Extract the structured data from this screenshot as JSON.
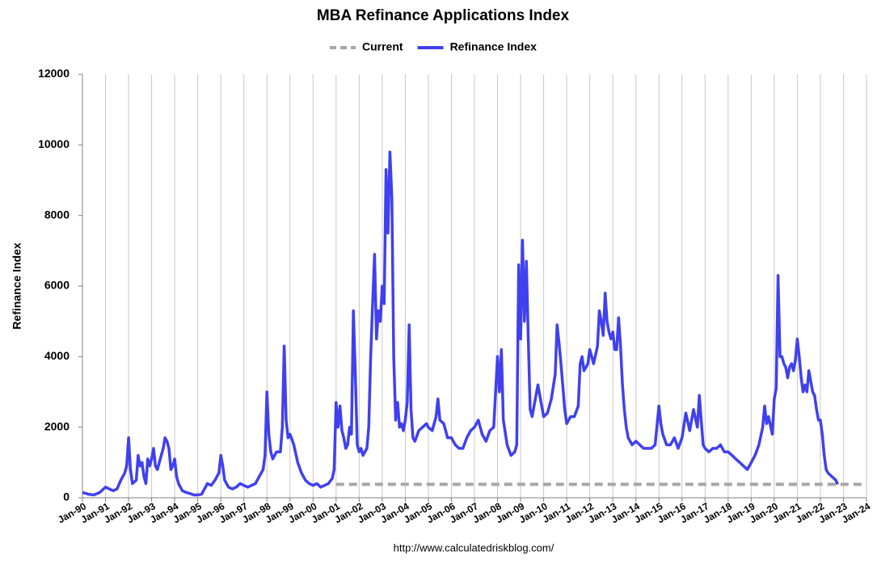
{
  "chart_data": {
    "type": "line",
    "title": "MBA Refinance Applications Index",
    "ylabel": "Refinance Index",
    "source": "http://www.calculatedriskblog.com/",
    "grid": "x",
    "legend": "top",
    "xlim": [
      "1990-01",
      "2024-01"
    ],
    "xticks": [
      {
        "value": "1990-01",
        "label": "Jan-90"
      },
      {
        "value": "1991-01",
        "label": "Jan-91"
      },
      {
        "value": "1992-01",
        "label": "Jan-92"
      },
      {
        "value": "1993-01",
        "label": "Jan-93"
      },
      {
        "value": "1994-01",
        "label": "Jan-94"
      },
      {
        "value": "1995-01",
        "label": "Jan-95"
      },
      {
        "value": "1996-01",
        "label": "Jan-96"
      },
      {
        "value": "1997-01",
        "label": "Jan-97"
      },
      {
        "value": "1998-01",
        "label": "Jan-98"
      },
      {
        "value": "1999-01",
        "label": "Jan-99"
      },
      {
        "value": "2000-01",
        "label": "Jan-00"
      },
      {
        "value": "2001-01",
        "label": "Jan-01"
      },
      {
        "value": "2002-01",
        "label": "Jan-02"
      },
      {
        "value": "2003-01",
        "label": "Jan-03"
      },
      {
        "value": "2004-01",
        "label": "Jan-04"
      },
      {
        "value": "2005-01",
        "label": "Jan-05"
      },
      {
        "value": "2006-01",
        "label": "Jan-06"
      },
      {
        "value": "2007-01",
        "label": "Jan-07"
      },
      {
        "value": "2008-01",
        "label": "Jan-08"
      },
      {
        "value": "2009-01",
        "label": "Jan-09"
      },
      {
        "value": "2010-01",
        "label": "Jan-10"
      },
      {
        "value": "2011-01",
        "label": "Jan-11"
      },
      {
        "value": "2012-01",
        "label": "Jan-12"
      },
      {
        "value": "2013-01",
        "label": "Jan-13"
      },
      {
        "value": "2014-01",
        "label": "Jan-14"
      },
      {
        "value": "2015-01",
        "label": "Jan-15"
      },
      {
        "value": "2016-01",
        "label": "Jan-16"
      },
      {
        "value": "2017-01",
        "label": "Jan-17"
      },
      {
        "value": "2018-01",
        "label": "Jan-18"
      },
      {
        "value": "2019-01",
        "label": "Jan-19"
      },
      {
        "value": "2020-01",
        "label": "Jan-20"
      },
      {
        "value": "2021-01",
        "label": "Jan-21"
      },
      {
        "value": "2022-01",
        "label": "Jan-22"
      },
      {
        "value": "2023-01",
        "label": "Jan-23"
      },
      {
        "value": "2024-01",
        "label": "Jan-24"
      }
    ],
    "ylim": [
      0,
      12000
    ],
    "yticks": [
      0,
      2000,
      4000,
      6000,
      8000,
      10000,
      12000
    ],
    "series": [
      {
        "name": "Current",
        "color": "#a6a6a6",
        "dash": true,
        "x": [
          "2001-01",
          "2024-01"
        ],
        "values": [
          380,
          380
        ]
      },
      {
        "name": "Refinance Index",
        "color": "#4040f0",
        "dash": false,
        "x": [
          "1990-01",
          "1990-04",
          "1990-07",
          "1990-10",
          "1991-01",
          "1991-03",
          "1991-05",
          "1991-07",
          "1991-09",
          "1991-11",
          "1991-12",
          "1992-01",
          "1992-02",
          "1992-03",
          "1992-05",
          "1992-06",
          "1992-07",
          "1992-08",
          "1992-09",
          "1992-10",
          "1992-11",
          "1992-12",
          "1993-01",
          "1993-02",
          "1993-03",
          "1993-04",
          "1993-06",
          "1993-07",
          "1993-08",
          "1993-09",
          "1993-10",
          "1993-11",
          "1993-12",
          "1994-01",
          "1994-02",
          "1994-03",
          "1994-05",
          "1994-07",
          "1994-09",
          "1994-11",
          "1995-01",
          "1995-03",
          "1995-05",
          "1995-06",
          "1995-08",
          "1995-10",
          "1995-12",
          "1996-01",
          "1996-02",
          "1996-03",
          "1996-05",
          "1996-07",
          "1996-09",
          "1996-11",
          "1997-01",
          "1997-03",
          "1997-05",
          "1997-07",
          "1997-09",
          "1997-11",
          "1997-12",
          "1998-01",
          "1998-02",
          "1998-03",
          "1998-04",
          "1998-06",
          "1998-08",
          "1998-09",
          "1998-10",
          "1998-11",
          "1998-12",
          "1999-01",
          "1999-03",
          "1999-05",
          "1999-07",
          "1999-09",
          "1999-11",
          "2000-01",
          "2000-03",
          "2000-05",
          "2000-07",
          "2000-09",
          "2000-11",
          "2000-12",
          "2001-01",
          "2001-02",
          "2001-03",
          "2001-04",
          "2001-05",
          "2001-06",
          "2001-07",
          "2001-08",
          "2001-09",
          "2001-10",
          "2001-11",
          "2001-12",
          "2002-01",
          "2002-02",
          "2002-03",
          "2002-05",
          "2002-06",
          "2002-07",
          "2002-08",
          "2002-09",
          "2002-10",
          "2002-11",
          "2002-12",
          "2003-01",
          "2003-02",
          "2003-03",
          "2003-04",
          "2003-05",
          "2003-06",
          "2003-07",
          "2003-08",
          "2003-09",
          "2003-10",
          "2003-11",
          "2003-12",
          "2004-01",
          "2004-02",
          "2004-03",
          "2004-04",
          "2004-05",
          "2004-06",
          "2004-08",
          "2004-10",
          "2004-12",
          "2005-01",
          "2005-03",
          "2005-05",
          "2005-06",
          "2005-07",
          "2005-09",
          "2005-11",
          "2006-01",
          "2006-03",
          "2006-05",
          "2006-07",
          "2006-09",
          "2006-11",
          "2007-01",
          "2007-03",
          "2007-05",
          "2007-07",
          "2007-09",
          "2007-11",
          "2008-01",
          "2008-02",
          "2008-03",
          "2008-04",
          "2008-06",
          "2008-08",
          "2008-10",
          "2008-11",
          "2008-12",
          "2009-01",
          "2009-02",
          "2009-03",
          "2009-04",
          "2009-05",
          "2009-06",
          "2009-07",
          "2009-08",
          "2009-10",
          "2009-12",
          "2010-01",
          "2010-03",
          "2010-05",
          "2010-07",
          "2010-08",
          "2010-09",
          "2010-10",
          "2010-12",
          "2011-01",
          "2011-03",
          "2011-05",
          "2011-07",
          "2011-08",
          "2011-09",
          "2011-10",
          "2011-12",
          "2012-01",
          "2012-03",
          "2012-05",
          "2012-06",
          "2012-07",
          "2012-08",
          "2012-09",
          "2012-10",
          "2012-11",
          "2012-12",
          "2013-01",
          "2013-02",
          "2013-03",
          "2013-04",
          "2013-05",
          "2013-06",
          "2013-07",
          "2013-08",
          "2013-09",
          "2013-11",
          "2014-01",
          "2014-03",
          "2014-05",
          "2014-07",
          "2014-09",
          "2014-11",
          "2015-01",
          "2015-02",
          "2015-03",
          "2015-05",
          "2015-07",
          "2015-09",
          "2015-11",
          "2016-01",
          "2016-03",
          "2016-05",
          "2016-07",
          "2016-09",
          "2016-10",
          "2016-11",
          "2016-12",
          "2017-01",
          "2017-03",
          "2017-05",
          "2017-07",
          "2017-09",
          "2017-11",
          "2018-01",
          "2018-03",
          "2018-05",
          "2018-07",
          "2018-09",
          "2018-11",
          "2019-01",
          "2019-03",
          "2019-05",
          "2019-07",
          "2019-08",
          "2019-09",
          "2019-10",
          "2019-12",
          "2020-01",
          "2020-02",
          "2020-03",
          "2020-04",
          "2020-05",
          "2020-06",
          "2020-07",
          "2020-08",
          "2020-09",
          "2020-10",
          "2020-11",
          "2020-12",
          "2021-01",
          "2021-02",
          "2021-03",
          "2021-04",
          "2021-05",
          "2021-06",
          "2021-07",
          "2021-08",
          "2021-09",
          "2021-10",
          "2021-11",
          "2021-12",
          "2022-01",
          "2022-02",
          "2022-03",
          "2022-04",
          "2022-05",
          "2022-06",
          "2022-07",
          "2022-08",
          "2022-09",
          "2022-10"
        ],
        "values": [
          150,
          100,
          80,
          150,
          300,
          250,
          200,
          250,
          500,
          700,
          900,
          1700,
          800,
          400,
          500,
          1200,
          900,
          1000,
          600,
          400,
          1100,
          900,
          1100,
          1400,
          900,
          800,
          1200,
          1400,
          1700,
          1600,
          1400,
          800,
          900,
          1100,
          600,
          400,
          200,
          150,
          120,
          80,
          80,
          100,
          300,
          400,
          350,
          500,
          700,
          1200,
          900,
          500,
          300,
          250,
          300,
          400,
          350,
          300,
          350,
          400,
          600,
          800,
          1200,
          3000,
          1800,
          1300,
          1100,
          1300,
          1300,
          2000,
          4300,
          2200,
          1700,
          1800,
          1500,
          1000,
          700,
          500,
          400,
          350,
          400,
          300,
          350,
          400,
          550,
          800,
          2700,
          2000,
          2600,
          1900,
          1700,
          1400,
          1500,
          2000,
          1800,
          5300,
          3500,
          1500,
          1300,
          1400,
          1200,
          1400,
          2000,
          4000,
          5500,
          6900,
          4500,
          5300,
          5000,
          6000,
          5500,
          9300,
          7500,
          9800,
          8500,
          4000,
          2200,
          2700,
          2000,
          2100,
          1900,
          2200,
          2700,
          4900,
          2500,
          1700,
          1600,
          1900,
          2000,
          2100,
          2000,
          1900,
          2300,
          2800,
          2200,
          2100,
          1700,
          1700,
          1500,
          1400,
          1400,
          1700,
          1900,
          2000,
          2200,
          1800,
          1600,
          1900,
          2000,
          4000,
          3000,
          4200,
          2200,
          1500,
          1200,
          1300,
          1500,
          6600,
          4500,
          7300,
          5000,
          6700,
          4500,
          2500,
          2300,
          2600,
          3200,
          2600,
          2300,
          2400,
          2800,
          3500,
          4900,
          4400,
          3800,
          2500,
          2100,
          2300,
          2300,
          2600,
          3800,
          4000,
          3600,
          3800,
          4200,
          3800,
          4300,
          5300,
          5000,
          4600,
          5800,
          5000,
          4700,
          4500,
          4700,
          4200,
          4200,
          5100,
          4300,
          3200,
          2500,
          2000,
          1700,
          1500,
          1600,
          1500,
          1400,
          1400,
          1400,
          1500,
          2600,
          2100,
          1800,
          1500,
          1500,
          1700,
          1400,
          1700,
          2400,
          1900,
          2500,
          2000,
          2900,
          2200,
          1500,
          1400,
          1300,
          1400,
          1400,
          1500,
          1300,
          1300,
          1200,
          1100,
          1000,
          900,
          800,
          1000,
          1200,
          1500,
          2000,
          2600,
          2100,
          2300,
          1800,
          2800,
          3100,
          6300,
          4000,
          4000,
          3800,
          3700,
          3400,
          3700,
          3800,
          3600,
          3900,
          4500,
          4000,
          3400,
          3000,
          3200,
          3000,
          3600,
          3300,
          3000,
          2900,
          2500,
          2200,
          2200,
          1800,
          1200,
          800,
          700,
          650,
          600,
          550,
          500,
          380
        ]
      }
    ]
  }
}
